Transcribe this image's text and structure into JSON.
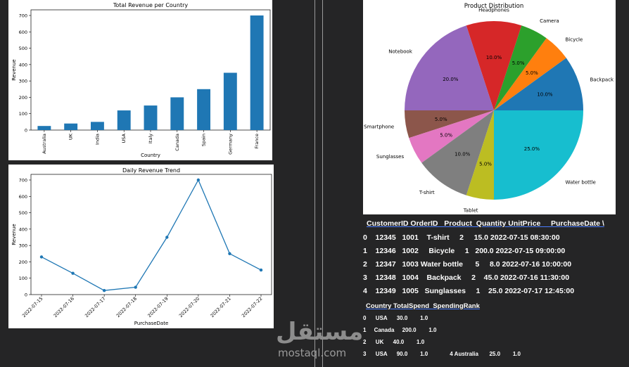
{
  "chart_data": [
    {
      "type": "bar",
      "title": "Total Revenue per Country",
      "xlabel": "Country",
      "ylabel": "Revenue",
      "categories": [
        "Australia",
        "UK",
        "India",
        "USA",
        "Italy",
        "Canada",
        "Spain",
        "Germany",
        "France"
      ],
      "values": [
        25,
        40,
        50,
        120,
        150,
        200,
        250,
        350,
        700
      ],
      "ylim": [
        0,
        700
      ],
      "yticks": [
        "0",
        "100",
        "200",
        "300",
        "400",
        "500",
        "600",
        "700"
      ],
      "color": "#1f77b4",
      "grid": false
    },
    {
      "type": "line",
      "title": "Daily Revenue Trend",
      "xlabel": "PurchaseDate",
      "ylabel": "Revenue",
      "x": [
        "2022-07-15",
        "2022-07-16",
        "2022-07-17",
        "2022-07-18",
        "2022-07-19",
        "2022-07-20",
        "2022-07-21",
        "2022-07-22"
      ],
      "values": [
        230,
        130,
        25,
        45,
        350,
        700,
        250,
        150
      ],
      "ylim": [
        0,
        700
      ],
      "yticks": [
        "0",
        "100",
        "200",
        "300",
        "400",
        "500",
        "600",
        "700"
      ],
      "color": "#1f77b4",
      "grid": false
    },
    {
      "type": "pie",
      "title": "Product Distribution",
      "slices": [
        {
          "label": "Backpack",
          "value": 10.0,
          "pct": "10.0%",
          "color": "#1f77b4"
        },
        {
          "label": "Bicycle",
          "value": 5.0,
          "pct": "5.0%",
          "color": "#ff7f0e"
        },
        {
          "label": "Camera",
          "value": 5.0,
          "pct": "5.0%",
          "color": "#2ca02c"
        },
        {
          "label": "Headphones",
          "value": 10.0,
          "pct": "10.0%",
          "color": "#d62728"
        },
        {
          "label": "Notebook",
          "value": 20.0,
          "pct": "20.0%",
          "color": "#9467bd"
        },
        {
          "label": "Smartphone",
          "value": 5.0,
          "pct": "5.0%",
          "color": "#8c564b"
        },
        {
          "label": "Sunglasses",
          "value": 5.0,
          "pct": "5.0%",
          "color": "#e377c2"
        },
        {
          "label": "T-shirt",
          "value": 10.0,
          "pct": "10.0%",
          "color": "#7f7f7f"
        },
        {
          "label": "Tablet",
          "value": 5.0,
          "pct": "5.0%",
          "color": "#bcbd22"
        },
        {
          "label": "Water bottle",
          "value": 25.0,
          "pct": "25.0%",
          "color": "#17becf"
        }
      ]
    }
  ],
  "orders_table": {
    "header": "CustomerID OrderID   Product  Quantity UnitPrice     PurchaseDate \\",
    "rows": [
      "0    12345   1001    T-shirt     2     15.0 2022-07-15 08:30:00",
      "1    12346   1002     Bicycle     1   200.0 2022-07-15 09:00:00",
      "2    12347   1003 Water bottle      5     8.0 2022-07-16 10:00:00",
      "3    12348   1004    Backpack     2    45.0 2022-07-16 11:30:00",
      "4    12349   1005   Sunglasses     1    25.0 2022-07-17 12:45:00"
    ]
  },
  "spending_table": {
    "header": "Country TotalSpend  SpendingRank",
    "rows": [
      "0      USA      30.0        1.0",
      "1     Canada     200.0        1.0",
      "2      UK      40.0        1.0",
      "3      USA      90.0        1.0              4 Australia       25.0        1.0"
    ]
  },
  "watermark": {
    "arabic": "مستقل",
    "latin": "mostaql.com"
  }
}
